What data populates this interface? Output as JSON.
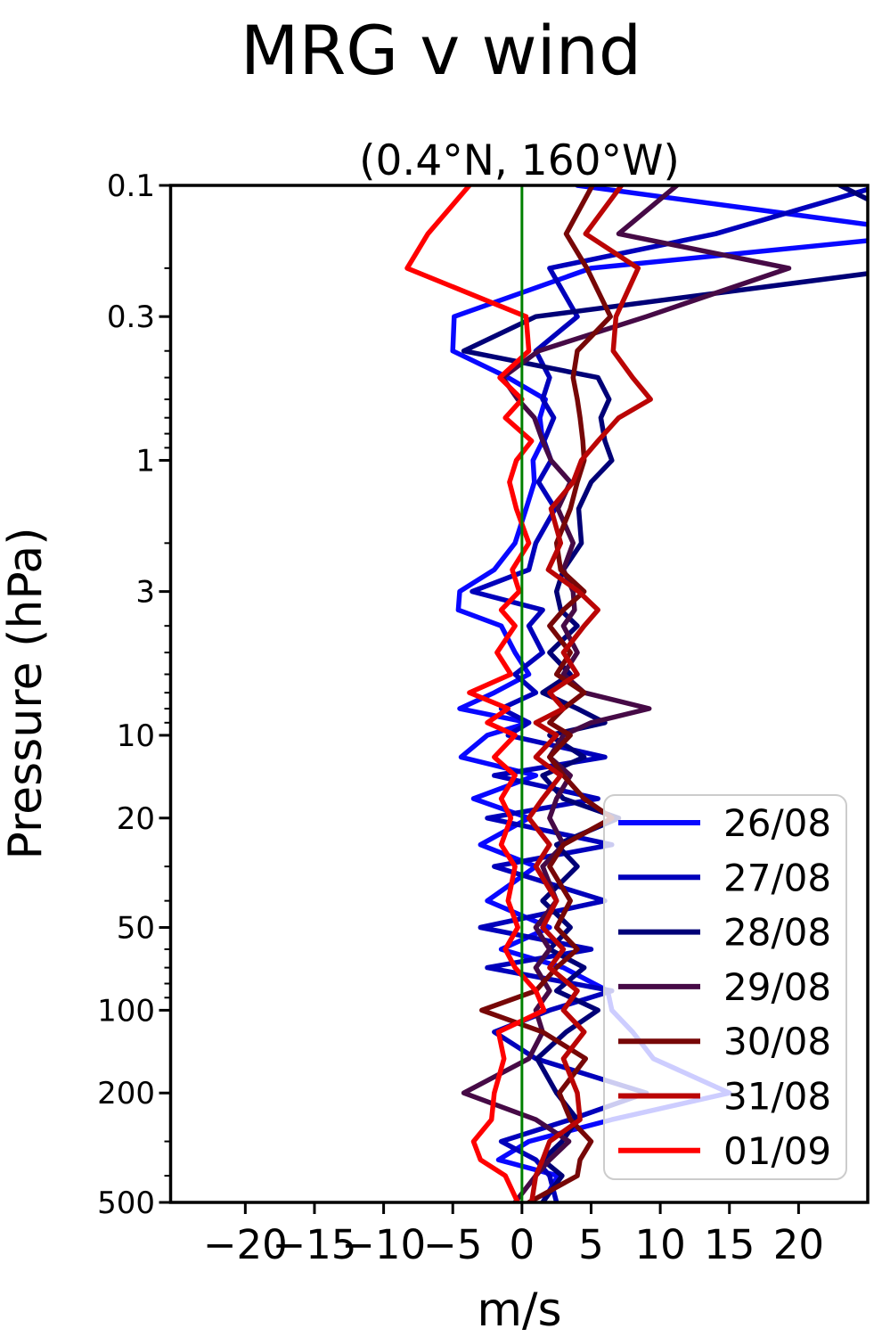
{
  "title": "MRG v wind",
  "subtitle": "(0.4°N, 160°W)",
  "xlabel": "m/s",
  "ylabel": "Pressure (hPa)",
  "zero_line_color": "#008000",
  "axes": {
    "x_tick_values": [
      -20,
      -15,
      -10,
      -5,
      0,
      5,
      10,
      15,
      20
    ],
    "x_tick_labels": [
      "−20",
      "−15",
      "−10",
      "−5",
      "0",
      "5",
      "10",
      "15",
      "20"
    ],
    "y_tick_values": [
      0.1,
      0.3,
      1,
      3,
      10,
      20,
      50,
      100,
      200,
      500
    ],
    "y_tick_labels": [
      "0.1",
      "0.3",
      "1",
      "3",
      "10",
      "20",
      "50",
      "100",
      "200",
      "500"
    ],
    "y_minor_ticks": [
      0.2,
      0.4,
      0.5,
      0.6,
      0.7,
      0.8,
      0.9,
      2,
      4,
      5,
      6,
      7,
      8,
      9,
      30,
      40,
      60,
      70,
      80,
      90,
      300,
      400
    ],
    "xlim": [
      -25.4,
      25.0
    ],
    "ylim": [
      0.1,
      500
    ],
    "y_scale": "log",
    "y_inverted": true
  },
  "legend": {
    "entries": [
      {
        "label": "26/08",
        "color": "#0808ff"
      },
      {
        "label": "27/08",
        "color": "#0000bb"
      },
      {
        "label": "28/08",
        "color": "#000077"
      },
      {
        "label": "29/08",
        "color": "#460a46"
      },
      {
        "label": "30/08",
        "color": "#770707"
      },
      {
        "label": "31/08",
        "color": "#bb0505"
      },
      {
        "label": "01/09",
        "color": "#ff0000"
      }
    ]
  },
  "chart_data": {
    "type": "line",
    "title": "MRG v wind",
    "subtitle": "(0.4°N, 160°W)",
    "xlabel": "m/s",
    "ylabel": "Pressure (hPa)",
    "xlim": [
      -25.4,
      25.0
    ],
    "ylim": [
      0.1,
      500
    ],
    "y_scale": "log",
    "y_inverted": true,
    "zero_reference_line_x": 0,
    "legend_position": "lower right",
    "pressure_levels_hPa": [
      0.1,
      0.15,
      0.2,
      0.3,
      0.4,
      0.5,
      0.6,
      0.7,
      0.85,
      1,
      1.2,
      1.5,
      2,
      2.5,
      3,
      3.5,
      4,
      5,
      6,
      7,
      8,
      9,
      10,
      12,
      14,
      17,
      20,
      25,
      30,
      40,
      50,
      60,
      70,
      85,
      100,
      120,
      150,
      200,
      250,
      300,
      350,
      400,
      500
    ],
    "series": [
      {
        "name": "26/08",
        "color": "#0808ff",
        "values": [
          4.0,
          30.0,
          5.0,
          -4.9,
          -5.0,
          -1.0,
          1.7,
          1.3,
          1.5,
          0.8,
          0.9,
          0.3,
          -0.5,
          -2.0,
          -4.5,
          -4.6,
          -1.5,
          -0.5,
          0.5,
          -2.0,
          -4.5,
          0.5,
          -2.5,
          -4.4,
          1.0,
          -3.5,
          0.5,
          -3.0,
          1.0,
          -2.5,
          2.0,
          -1.5,
          3.0,
          6.2,
          6.5,
          8.0,
          9.5,
          15.0,
          6.5,
          0.5,
          -1.7,
          2.6,
          1.5
        ]
      },
      {
        "name": "27/08",
        "color": "#0000bb",
        "values": [
          26.0,
          14.0,
          2.0,
          4.0,
          1.0,
          2.0,
          1.5,
          2.3,
          1.6,
          2.1,
          1.2,
          2.4,
          1.0,
          0.5,
          -3.6,
          1.5,
          0.5,
          1.5,
          -0.5,
          1.0,
          -1.5,
          0.5,
          -1.0,
          6.0,
          -2.0,
          5.5,
          -2.5,
          6.5,
          -2.0,
          6.0,
          -3.0,
          5.0,
          -2.5,
          6.5,
          2.0,
          -2.0,
          1.0,
          9.0,
          3.5,
          -1.5,
          1.0,
          2.0,
          2.5
        ]
      },
      {
        "name": "28/08",
        "color": "#000077",
        "values": [
          23.0,
          30.0,
          28.0,
          1.0,
          -4.2,
          5.5,
          6.3,
          5.7,
          6.0,
          6.5,
          5.0,
          4.1,
          4.3,
          3.0,
          2.5,
          2.8,
          4.0,
          2.0,
          3.5,
          1.5,
          4.0,
          6.0,
          2.0,
          4.5,
          1.5,
          3.0,
          7.0,
          2.5,
          4.0,
          1.5,
          3.5,
          2.0,
          4.5,
          2.5,
          5.5,
          3.2,
          1.1,
          2.5,
          4.0,
          2.9,
          1.5,
          2.9,
          1.5
        ]
      },
      {
        "name": "29/08",
        "color": "#460a46",
        "values": [
          11.2,
          7.0,
          19.3,
          9.0,
          1.2,
          -1.4,
          -0.3,
          0.9,
          1.5,
          2.1,
          3.5,
          2.6,
          3.7,
          3.0,
          3.7,
          3.8,
          3.0,
          4.0,
          3.0,
          4.5,
          9.2,
          5.0,
          3.0,
          2.0,
          3.5,
          2.5,
          2.0,
          3.0,
          1.5,
          2.5,
          1.0,
          2.0,
          1.0,
          2.0,
          1.0,
          1.5,
          0.5,
          -4.2,
          1.0,
          3.4,
          2.0,
          1.0,
          -0.5
        ]
      },
      {
        "name": "30/08",
        "color": "#770707",
        "values": [
          5.1,
          3.2,
          4.7,
          6.4,
          4.0,
          3.7,
          4.0,
          4.2,
          4.4,
          4.5,
          4.0,
          3.5,
          2.5,
          2.8,
          4.5,
          3.0,
          2.0,
          3.5,
          2.5,
          4.5,
          3.0,
          2.0,
          3.5,
          2.0,
          3.0,
          4.5,
          6.5,
          3.0,
          2.0,
          3.5,
          2.5,
          4.0,
          2.5,
          1.0,
          -2.9,
          1.5,
          4.6,
          2.7,
          3.5,
          5.0,
          4.2,
          4.0,
          0.5
        ]
      },
      {
        "name": "31/08",
        "color": "#bb0505",
        "values": [
          7.2,
          4.6,
          8.4,
          6.8,
          6.6,
          8.0,
          9.3,
          7.0,
          5.5,
          4.3,
          3.7,
          2.1,
          2.8,
          1.9,
          4.1,
          5.5,
          4.5,
          3.0,
          4.0,
          2.0,
          3.0,
          1.0,
          2.5,
          1.0,
          2.8,
          1.5,
          0.5,
          2.0,
          1.0,
          2.5,
          1.5,
          3.0,
          2.0,
          4.0,
          3.0,
          4.5,
          3.0,
          4.0,
          4.2,
          2.0,
          1.5,
          1.0,
          0.7
        ]
      },
      {
        "name": "01/09",
        "color": "#ff0000",
        "values": [
          -3.8,
          -6.8,
          -8.3,
          0.3,
          0.5,
          -1.6,
          0.0,
          -1.2,
          0.7,
          -0.4,
          -0.9,
          -0.4,
          0.5,
          -0.7,
          -0.2,
          -1.5,
          -0.5,
          -1.8,
          -0.8,
          -3.8,
          -1.0,
          -2.5,
          -0.5,
          -2.0,
          -0.5,
          -1.5,
          -0.8,
          -1.5,
          -0.5,
          -1.0,
          -0.3,
          -1.2,
          -0.5,
          1.0,
          1.6,
          -1.7,
          -1.3,
          -2.0,
          -2.2,
          -3.5,
          -3.0,
          -1.2,
          -0.3
        ]
      }
    ]
  }
}
